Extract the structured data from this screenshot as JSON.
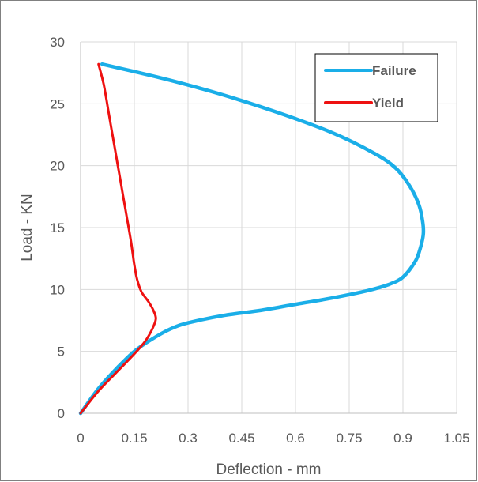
{
  "chart_data": {
    "type": "line",
    "title": "",
    "xlabel": "Deflection - mm",
    "ylabel": "Load - KN",
    "xlim": [
      0,
      1.05
    ],
    "ylim": [
      0,
      30
    ],
    "xticks": [
      "0",
      "0.15",
      "0.3",
      "0.45",
      "0.6",
      "0.75",
      "0.9",
      "1.05"
    ],
    "yticks": [
      "0",
      "5",
      "10",
      "15",
      "20",
      "25",
      "30"
    ],
    "grid": "vertical and horizontal gridlines",
    "legend_position": "top-right",
    "series": [
      {
        "name": "Failure",
        "color": "#1aaee8",
        "points": [
          [
            0,
            0
          ],
          [
            0.05,
            2
          ],
          [
            0.1,
            3.6
          ],
          [
            0.15,
            5.0
          ],
          [
            0.2,
            6.0
          ],
          [
            0.25,
            6.8
          ],
          [
            0.3,
            7.3
          ],
          [
            0.4,
            7.9
          ],
          [
            0.5,
            8.3
          ],
          [
            0.6,
            8.8
          ],
          [
            0.7,
            9.3
          ],
          [
            0.8,
            9.9
          ],
          [
            0.86,
            10.4
          ],
          [
            0.9,
            11.0
          ],
          [
            0.935,
            12.3
          ],
          [
            0.95,
            13.5
          ],
          [
            0.957,
            14.5
          ],
          [
            0.955,
            15.5
          ],
          [
            0.945,
            16.8
          ],
          [
            0.92,
            18.3
          ],
          [
            0.88,
            19.8
          ],
          [
            0.82,
            21.0
          ],
          [
            0.7,
            22.7
          ],
          [
            0.55,
            24.3
          ],
          [
            0.4,
            25.7
          ],
          [
            0.25,
            26.9
          ],
          [
            0.15,
            27.6
          ],
          [
            0.06,
            28.2
          ]
        ]
      },
      {
        "name": "Yield",
        "color": "#ee1111",
        "points": [
          [
            0,
            0
          ],
          [
            0.05,
            1.8
          ],
          [
            0.1,
            3.3
          ],
          [
            0.15,
            4.8
          ],
          [
            0.18,
            5.8
          ],
          [
            0.2,
            6.8
          ],
          [
            0.21,
            7.6
          ],
          [
            0.205,
            8.2
          ],
          [
            0.19,
            9.0
          ],
          [
            0.17,
            9.8
          ],
          [
            0.158,
            10.8
          ],
          [
            0.15,
            12.0
          ],
          [
            0.14,
            14.0
          ],
          [
            0.125,
            16.5
          ],
          [
            0.11,
            19.0
          ],
          [
            0.095,
            21.5
          ],
          [
            0.08,
            24.0
          ],
          [
            0.065,
            26.5
          ],
          [
            0.05,
            28.2
          ]
        ]
      }
    ]
  }
}
